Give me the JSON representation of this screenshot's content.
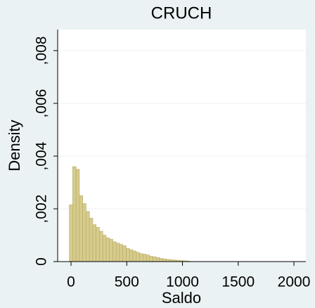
{
  "chart_data": {
    "type": "histogram",
    "title": "CRUCH",
    "xlabel": "Saldo",
    "ylabel": "Density",
    "bins": [
      -15,
      15,
      45,
      75,
      105,
      135,
      165,
      195,
      225,
      255,
      285,
      315,
      345,
      375,
      405,
      435,
      465,
      495,
      525,
      555,
      585,
      615,
      645,
      675,
      705,
      735,
      765,
      795,
      825,
      855,
      885,
      915,
      945,
      975,
      1005,
      1035,
      1065
    ],
    "counts": [
      0.00215,
      0.0036,
      0.0035,
      0.0025,
      0.0022,
      0.0019,
      0.00165,
      0.0014,
      0.0013,
      0.00115,
      0.001,
      0.0009,
      0.00085,
      0.00075,
      0.0007,
      0.00065,
      0.0006,
      0.0005,
      0.00045,
      0.0004,
      0.00035,
      0.0003,
      0.00028,
      0.00025,
      0.0002,
      0.00018,
      0.00015,
      0.00012,
      0.0001,
      8e-05,
      7e-05,
      6e-05,
      5e-05,
      4e-05,
      3e-05,
      2e-05
    ],
    "color": "#d8cc8c",
    "xlim": [
      -120,
      2107
    ],
    "ylim": [
      0,
      0.0088
    ],
    "xticks": [
      0,
      500,
      1000,
      1500,
      2000
    ],
    "yticks": [
      0,
      {
        "value": 0.002,
        "label": ",002"
      },
      {
        "value": 0.004,
        "label": ",004"
      },
      {
        "value": 0.006,
        "label": ",006"
      },
      {
        "value": 0.008,
        "label": ",008"
      }
    ],
    "grid": true
  }
}
